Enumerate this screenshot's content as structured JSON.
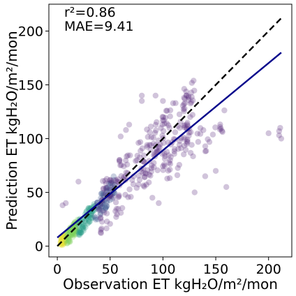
{
  "chart_data": {
    "type": "scatter",
    "xlabel": "Observation ET kgH₂O/m²/mon",
    "ylabel": "Prediction ET kgH₂O/m²/mon",
    "xlim": [
      -8,
      222
    ],
    "ylim": [
      -10,
      225
    ],
    "xticks": [
      0,
      50,
      100,
      150,
      200
    ],
    "yticks": [
      0,
      50,
      100,
      150,
      200
    ],
    "annotations": [
      "r²=0.86",
      "MAE=9.41"
    ],
    "grid": false,
    "point_color_scale": [
      "#440154",
      "#3b528b",
      "#21908c",
      "#5dc962",
      "#fde725"
    ],
    "series": [
      {
        "kind": "points",
        "clusters": [
          {
            "x": [
              3,
              8
            ],
            "y": [
              3,
              8
            ],
            "count": 60,
            "color": "#e6e03a"
          },
          {
            "x": [
              8,
              20
            ],
            "y": [
              6,
              20
            ],
            "count": 70,
            "color": "#7fd05b"
          },
          {
            "x": [
              20,
              35
            ],
            "y": [
              16,
              35
            ],
            "count": 70,
            "color": "#2a9d8a"
          },
          {
            "x": [
              35,
              55
            ],
            "y": [
              30,
              58
            ],
            "count": 70,
            "color": "#3b528b"
          },
          {
            "x": [
              40,
              130
            ],
            "y": [
              35,
              130
            ],
            "count": 230,
            "color": "#5b2a7d"
          },
          {
            "x": [
              100,
              160
            ],
            "y": [
              70,
              115
            ],
            "count": 40,
            "color": "#5b2a7d"
          }
        ],
        "outliers": [
          {
            "x": 80,
            "y": 140
          },
          {
            "x": 80,
            "y": 135
          },
          {
            "x": 93,
            "y": 140
          },
          {
            "x": 100,
            "y": 135
          },
          {
            "x": 112,
            "y": 133
          },
          {
            "x": 120,
            "y": 138
          },
          {
            "x": 5,
            "y": 38
          },
          {
            "x": 8,
            "y": 40
          },
          {
            "x": 20,
            "y": 60
          },
          {
            "x": 90,
            "y": 45
          },
          {
            "x": 96,
            "y": 40
          },
          {
            "x": 130,
            "y": 50
          },
          {
            "x": 140,
            "y": 65
          },
          {
            "x": 150,
            "y": 70
          },
          {
            "x": 160,
            "y": 55
          },
          {
            "x": 200,
            "y": 105
          },
          {
            "x": 210,
            "y": 107
          },
          {
            "x": 210,
            "y": 103
          },
          {
            "x": 211,
            "y": 110
          },
          {
            "x": 212,
            "y": 100
          },
          {
            "x": 65,
            "y": 108
          },
          {
            "x": 68,
            "y": 113
          },
          {
            "x": 60,
            "y": 102
          }
        ]
      },
      {
        "kind": "line",
        "x": [
          0,
          212
        ],
        "y": [
          0,
          212
        ],
        "color": "#000000",
        "dash": true
      },
      {
        "kind": "line",
        "x": [
          0,
          212
        ],
        "y": [
          8,
          180
        ],
        "color": "#00008b",
        "dash": false
      }
    ]
  }
}
